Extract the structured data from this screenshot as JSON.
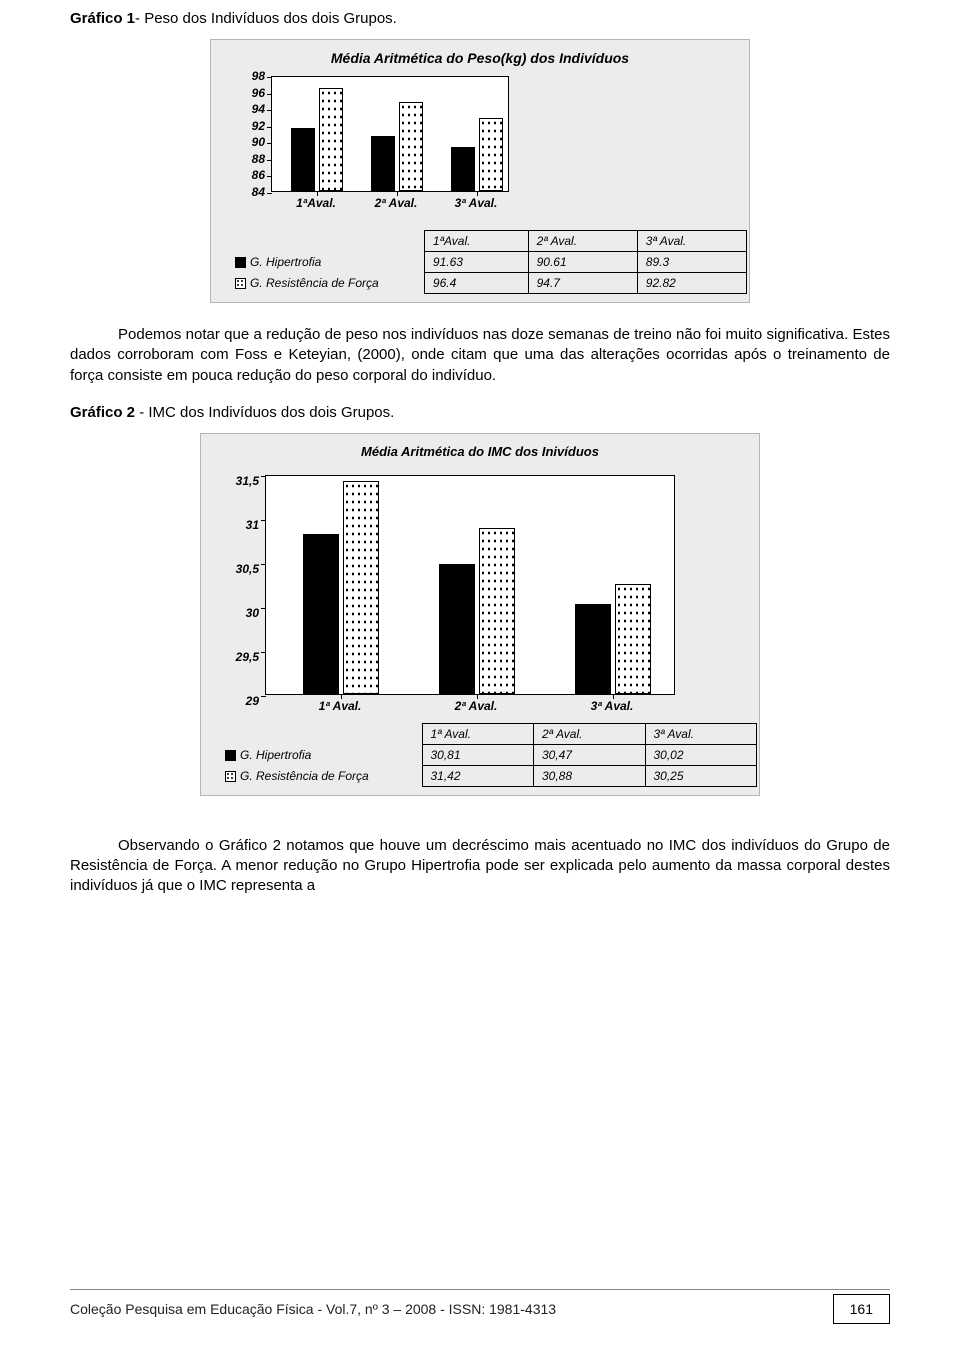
{
  "caption1_prefix": "Gráfico 1",
  "caption1_rest": "- Peso dos Indivíduos dos dois Grupos.",
  "chart1": {
    "title": "Média Aritmética do Peso(kg) dos Indivíduos",
    "title_fontsize": 14,
    "ylim": [
      84,
      98
    ],
    "yticks": [
      84,
      86,
      88,
      90,
      92,
      94,
      96,
      98
    ],
    "xlabels": [
      "1ªAval.",
      "2ª Aval.",
      "3ª Aval."
    ],
    "series": [
      {
        "name": "G. Hipertrofia",
        "values": [
          91.63,
          90.61,
          89.3
        ],
        "pattern": "solid"
      },
      {
        "name": "G. Resistência de Força",
        "values": [
          96.4,
          94.7,
          92.82
        ],
        "pattern": "dot"
      }
    ],
    "headers": [
      "1ªAval.",
      "2ª Aval.",
      "3ª Aval."
    ],
    "table_rows": [
      {
        "label": "G. Hipertrofia",
        "swatch": "solid",
        "cells": [
          "91.63",
          "90.61",
          "89.3"
        ]
      },
      {
        "label": "G. Resistência de Força",
        "swatch": "dot",
        "cells": [
          "96.4",
          "94.7",
          "92.82"
        ]
      }
    ],
    "background_color": "#ececec",
    "plot_bg": "#ffffff",
    "grid_color": "#000000"
  },
  "para1": "Podemos notar que a redução de peso nos indivíduos nas doze semanas de treino não foi muito significativa. Estes dados corroboram com Foss e Keteyian, (2000), onde citam que uma das alterações ocorridas após o treinamento de força consiste em pouca redução do peso corporal do indivíduo.",
  "caption2_prefix": "Gráfico 2",
  "caption2_rest": " - IMC dos Indivíduos dos dois Grupos.",
  "chart2": {
    "title": "Média Aritmética do IMC dos Inivíduos",
    "title_fontsize": 13,
    "ylim": [
      29,
      31.5
    ],
    "yticks": [
      29,
      29.5,
      30,
      30.5,
      31,
      31.5
    ],
    "ytick_labels": [
      "29",
      "29,5",
      "30",
      "30,5",
      "31",
      "31,5"
    ],
    "xlabels": [
      "1ª Aval.",
      "2ª Aval.",
      "3ª Aval."
    ],
    "series": [
      {
        "name": "G. Hipertrofia",
        "values": [
          30.81,
          30.47,
          30.02
        ],
        "pattern": "solid"
      },
      {
        "name": "G. Resistência de Força",
        "values": [
          31.42,
          30.88,
          30.25
        ],
        "pattern": "dot"
      }
    ],
    "headers": [
      "1ª Aval.",
      "2ª Aval.",
      "3ª Aval."
    ],
    "table_rows": [
      {
        "label": "G. Hipertrofia",
        "swatch": "solid",
        "cells": [
          "30,81",
          "30,47",
          "30,02"
        ]
      },
      {
        "label": "G. Resistência de Força",
        "swatch": "dot",
        "cells": [
          "31,42",
          "30,88",
          "30,25"
        ]
      }
    ],
    "background_color": "#ececec",
    "plot_bg": "#ffffff"
  },
  "para2": "Observando o Gráfico 2 notamos que houve um decréscimo mais acentuado no IMC dos indivíduos do Grupo de Resistência de Força. A menor redução no Grupo Hipertrofia pode ser explicada pelo aumento da massa corporal destes indivíduos já que o IMC representa a",
  "footer": "Coleção Pesquisa em Educação Física - Vol.7, nº 3 – 2008  -  ISSN: 1981-4313",
  "page_number": "161"
}
